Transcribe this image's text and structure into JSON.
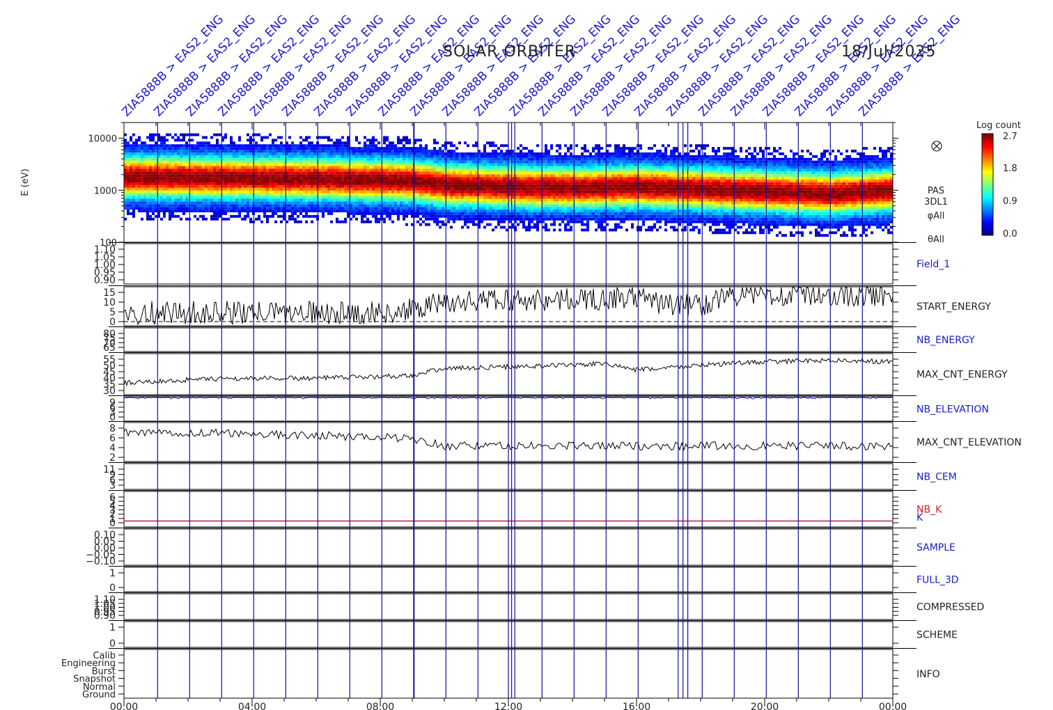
{
  "header": {
    "mission": "SOLAR ORBITER",
    "date": "18/Jul/2025"
  },
  "markers": {
    "label": "ZIA5888B > EAS2_ENG",
    "label_color": "#1a1acc",
    "line_color": "#1010a0"
  },
  "time_axis": {
    "tick_labels": [
      "00:00",
      "04:00",
      "08:00",
      "12:00",
      "16:00",
      "20:00",
      "00:00"
    ],
    "range_hours": [
      0,
      24
    ]
  },
  "colorbar": {
    "title": "Log count",
    "ticks": [
      "2.7",
      "1.8",
      "0.9",
      "0.0"
    ],
    "range": [
      0.0,
      2.7
    ]
  },
  "spectrogram": {
    "ylabel": "E (eV)",
    "ytick_labels": [
      "10000",
      "1000",
      "100"
    ],
    "side_labels": [
      "PAS",
      "3DL1",
      "φAll",
      "θAll"
    ],
    "mode_icon": "crossed-circle-icon"
  },
  "panels": {
    "field_1": {
      "label": "Field_1",
      "label_color": "#1a1acc",
      "ticks": [
        "1.10",
        "1.05",
        "1.00",
        "0.95",
        "0.90"
      ]
    },
    "start_energy": {
      "label": "START_ENERGY",
      "label_color": "#222222",
      "ticks": [
        "15",
        "10",
        "5",
        "0"
      ]
    },
    "nb_energy": {
      "label": "NB_ENERGY",
      "label_color": "#1a1acc",
      "ticks": [
        "80",
        "75",
        "70",
        "65"
      ]
    },
    "max_cnt_energy": {
      "label": "MAX_CNT_ENERGY",
      "label_color": "#222222",
      "ticks": [
        "55",
        "50",
        "45",
        "40",
        "35",
        "30"
      ]
    },
    "nb_elevation": {
      "label": "NB_ELEVATION",
      "label_color": "#1a1acc",
      "ticks": [
        "9",
        "6",
        "3",
        "0"
      ]
    },
    "max_cnt_elevation": {
      "label": "MAX_CNT_ELEVATION",
      "label_color": "#222222",
      "ticks": [
        "8",
        "6",
        "4",
        "2"
      ]
    },
    "nb_cem": {
      "label": "NB_CEM",
      "label_color": "#1a1acc",
      "ticks": [
        "11",
        "9",
        "6",
        "3"
      ]
    },
    "nb_k": {
      "label": "NB_K",
      "label_color": "#cc2222",
      "label2": "K",
      "label2_color": "#1a1acc",
      "ticks": [
        "6",
        "5",
        "4",
        "3",
        "2",
        "1",
        "0"
      ]
    },
    "sample": {
      "label": "SAMPLE",
      "label_color": "#1a1acc",
      "ticks": [
        "0.10",
        "0.05",
        "0.00",
        "−0.05",
        "−0.10"
      ]
    },
    "full_3d": {
      "label": "FULL_3D",
      "label_color": "#1a1acc",
      "ticks": [
        "1",
        "0"
      ]
    },
    "compressed": {
      "label": "COMPRESSED",
      "label_color": "#222222",
      "ticks": [
        "1.10",
        "1.05",
        "1.00",
        "0.95",
        "0.90"
      ]
    },
    "scheme": {
      "label": "SCHEME",
      "label_color": "#222222",
      "ticks": [
        "1",
        "0"
      ]
    },
    "info": {
      "label": "INFO",
      "label_color": "#222222",
      "ticks": [
        "Calib",
        "Engineering",
        "Burst",
        "Snapshot",
        "Normal",
        "Ground"
      ]
    }
  },
  "chart_data": {
    "type": "heatmap",
    "title": "SOLAR ORBITER",
    "xlabel": "",
    "ylabel": "E (eV)",
    "x_range_hours": [
      0,
      24
    ],
    "y_log": true,
    "ylim": [
      100,
      20000
    ],
    "marker_times_hours": [
      1.05,
      2.05,
      3.05,
      4.05,
      5.05,
      6.05,
      7.05,
      8.05,
      9.05,
      10.05,
      11.05,
      12.0,
      12.1,
      12.2,
      13.05,
      14.05,
      15.05,
      16.05,
      17.3,
      17.45,
      17.6,
      18.05,
      19.05,
      20.05,
      21.05,
      22.05,
      23.05
    ],
    "peak_energy_ev": {
      "hours": [
        0,
        2,
        4,
        6,
        8,
        9,
        10,
        12,
        14,
        16,
        18,
        20,
        22,
        24
      ],
      "values": [
        1800,
        1750,
        1700,
        1650,
        1550,
        1500,
        1250,
        1150,
        1100,
        1150,
        1050,
        950,
        850,
        1000
      ]
    },
    "series": [
      {
        "name": "START_ENERGY",
        "hours": [
          0,
          4,
          8,
          9,
          10,
          12,
          14,
          16,
          17,
          18,
          19,
          20,
          22,
          24
        ],
        "values": [
          5,
          5,
          5,
          6,
          9,
          10,
          10,
          11,
          8,
          8,
          12,
          12,
          12,
          12
        ]
      },
      {
        "name": "MAX_CNT_ENERGY",
        "hours": [
          0,
          2,
          4,
          6,
          8,
          9,
          10,
          12,
          14,
          15,
          16,
          18,
          20,
          22,
          24
        ],
        "values": [
          37,
          39,
          40,
          40,
          41,
          42,
          46,
          47,
          48,
          49,
          45,
          48,
          50,
          51,
          50
        ]
      },
      {
        "name": "NB_ELEVATION",
        "hours": [
          0,
          24
        ],
        "values": [
          9,
          9
        ]
      },
      {
        "name": "MAX_CNT_ELEVATION",
        "hours": [
          0,
          3,
          6,
          9,
          10,
          12,
          14,
          16,
          18,
          20,
          24
        ],
        "values": [
          6.5,
          6.5,
          6,
          5.5,
          4,
          4,
          4,
          4,
          4,
          4,
          4
        ]
      },
      {
        "name": "NB_K",
        "hours": [
          0,
          24
        ],
        "values": [
          1,
          1
        ]
      },
      {
        "name": "K",
        "hours": [
          0,
          24
        ],
        "values": [
          0,
          0
        ]
      }
    ]
  }
}
